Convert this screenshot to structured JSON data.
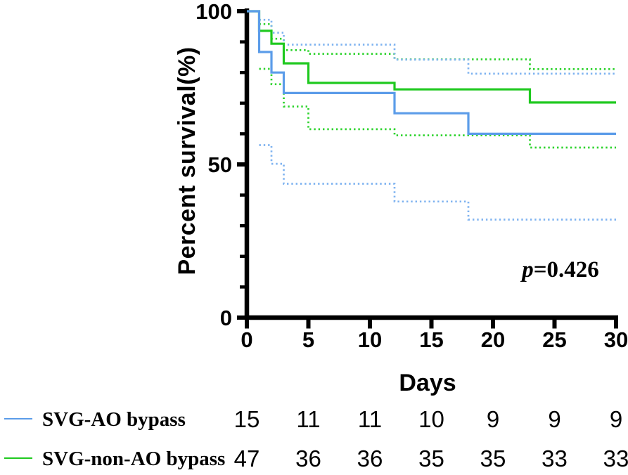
{
  "chart_data": {
    "type": "line",
    "subtype": "kaplan-meier-step",
    "title": "",
    "xlabel": "Days",
    "ylabel": "Percent survival(%)",
    "xlim": [
      0,
      30
    ],
    "ylim": [
      0,
      100
    ],
    "x_ticks": [
      0,
      5,
      10,
      15,
      20,
      25,
      30
    ],
    "y_major_ticks": [
      0,
      50,
      100
    ],
    "y_minor_tick_step": 10,
    "grid": false,
    "legend_position": "bottom-left",
    "annotation": {
      "p_prefix": "p",
      "p_rest": "=0.426"
    },
    "at_risk_days": [
      0,
      5,
      10,
      15,
      20,
      25,
      30
    ],
    "series": [
      {
        "name": "SVG-AO bypass",
        "color": "#5b9ce9",
        "ci_color": "#7fb3f0",
        "steps": [
          [
            0,
            100
          ],
          [
            1,
            86.7
          ],
          [
            2,
            80
          ],
          [
            3,
            73.3
          ],
          [
            12,
            66.7
          ],
          [
            18,
            60
          ],
          [
            30,
            60
          ]
        ],
        "upper_ci": [
          [
            1,
            97.2
          ],
          [
            2,
            93
          ],
          [
            3,
            89.1
          ],
          [
            12,
            84.2
          ],
          [
            18,
            79.6
          ],
          [
            30,
            79.6
          ]
        ],
        "lower_ci": [
          [
            1,
            56.3
          ],
          [
            2,
            50.2
          ],
          [
            3,
            43.7
          ],
          [
            12,
            37.9
          ],
          [
            18,
            32
          ],
          [
            30,
            32
          ]
        ],
        "at_risk": [
          15,
          11,
          11,
          10,
          9,
          9,
          9
        ]
      },
      {
        "name": "SVG-non-AO bypass",
        "color": "#1fc91f",
        "ci_color": "#2ed32e",
        "steps": [
          [
            0,
            100
          ],
          [
            1,
            93.6
          ],
          [
            2,
            89.4
          ],
          [
            3,
            83
          ],
          [
            5,
            76.6
          ],
          [
            12,
            74.5
          ],
          [
            23,
            70.2
          ],
          [
            30,
            70.2
          ]
        ],
        "upper_ci": [
          [
            1,
            95.8
          ],
          [
            2,
            91
          ],
          [
            3,
            87.3
          ],
          [
            5,
            86.1
          ],
          [
            12,
            84.3
          ],
          [
            23,
            81.1
          ],
          [
            30,
            81.1
          ]
        ],
        "lower_ci": [
          [
            1,
            81.2
          ],
          [
            2,
            76.2
          ],
          [
            3,
            68.9
          ],
          [
            5,
            61.5
          ],
          [
            12,
            59.5
          ],
          [
            23,
            55.5
          ],
          [
            30,
            55.5
          ]
        ],
        "at_risk": [
          47,
          36,
          36,
          35,
          35,
          33,
          33
        ]
      }
    ],
    "colors": {
      "axis": "#000000",
      "background": "#ffffff"
    }
  }
}
